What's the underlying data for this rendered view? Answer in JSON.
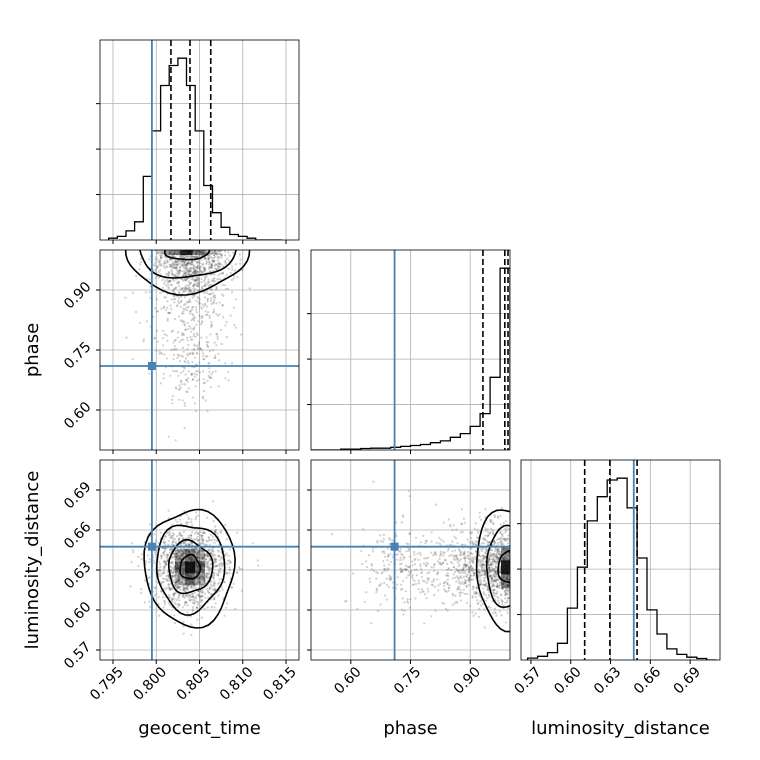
{
  "chart_data": {
    "type": "corner",
    "colors": {
      "truth": "#4682b4",
      "line": "#000000",
      "grid": "#b0b0b0",
      "scatter": "#555555"
    },
    "grid": true,
    "parameters": [
      {
        "key": "geocent_time",
        "label": "geocent_time",
        "range": [
          0.7935,
          0.8165
        ],
        "ticks": [
          "0.795",
          "0.800",
          "0.805",
          "0.810",
          "0.815"
        ],
        "truth": 0.7995,
        "quantiles": [
          0.8017,
          0.8039,
          0.8063
        ],
        "histogram": {
          "bin_start": 0.7945,
          "bin_width": 0.001,
          "counts": [
            1,
            2,
            5,
            10,
            35,
            60,
            85,
            96,
            100,
            85,
            60,
            30,
            15,
            7,
            3,
            2,
            1,
            0,
            0,
            0
          ]
        }
      },
      {
        "key": "phase",
        "label": "phase",
        "range": [
          0.5,
          1.0
        ],
        "ticks": [
          "0.60",
          "0.75",
          "0.90"
        ],
        "truth": 0.71,
        "quantiles": [
          0.932,
          0.987,
          0.995
        ],
        "histogram": {
          "bin_start": 0.5,
          "bin_width": 0.025,
          "counts": [
            0,
            0,
            0,
            0.5,
            0.5,
            0.8,
            1,
            1,
            1.5,
            2,
            2.5,
            3,
            4,
            5,
            7,
            9,
            13,
            20,
            40,
            100
          ]
        }
      },
      {
        "key": "luminosity_distance",
        "label": "luminosity_distance",
        "range": [
          0.5625,
          0.7125
        ],
        "ticks": [
          "0.57",
          "0.60",
          "0.63",
          "0.66",
          "0.69"
        ],
        "truth": 0.6475,
        "quantiles": [
          0.6105,
          0.6295,
          0.65
        ],
        "histogram": {
          "bin_start": 0.5675,
          "bin_width": 0.0075,
          "counts": [
            1,
            2,
            4,
            9,
            28,
            50,
            75,
            88,
            97,
            98,
            82,
            55,
            27,
            14,
            6,
            3,
            1.5,
            0.8,
            0
          ]
        }
      }
    ]
  }
}
